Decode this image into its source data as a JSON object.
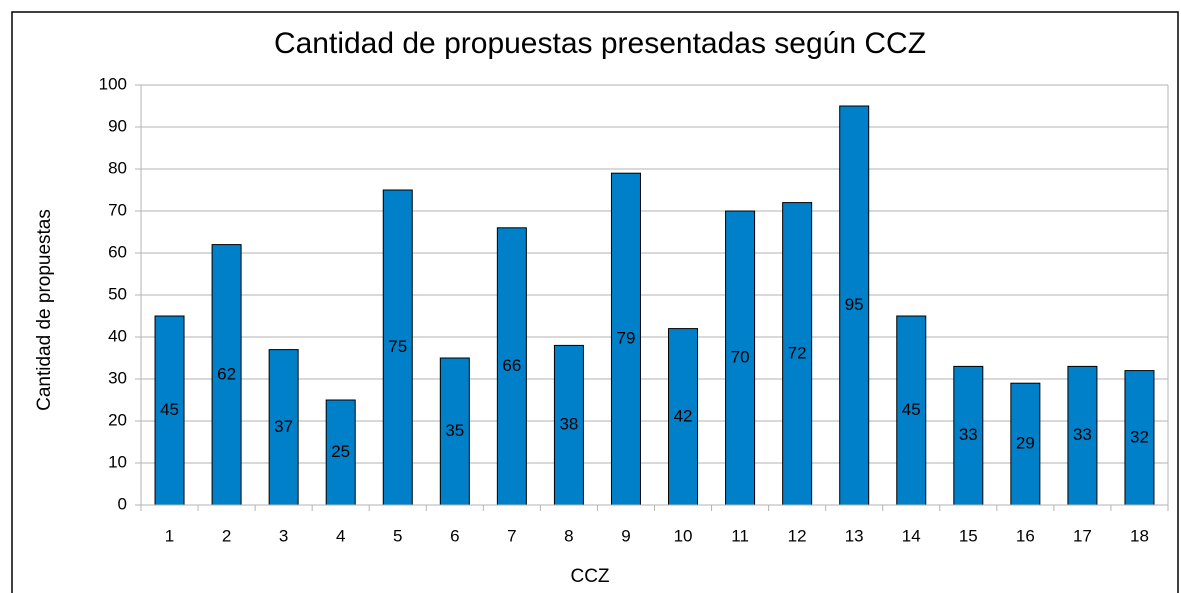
{
  "chart_data": {
    "type": "bar",
    "title": "Cantidad de propuestas presentadas según CCZ",
    "x_label": "CCZ",
    "y_label": "Cantidad de propuestas",
    "categories": [
      "1",
      "2",
      "3",
      "4",
      "5",
      "6",
      "7",
      "8",
      "9",
      "10",
      "11",
      "12",
      "13",
      "14",
      "15",
      "16",
      "17",
      "18"
    ],
    "values": [
      45,
      62,
      37,
      25,
      75,
      35,
      66,
      38,
      79,
      42,
      70,
      72,
      95,
      45,
      33,
      29,
      33,
      32
    ],
    "color": "#0080c8",
    "ylim": [
      0,
      100
    ],
    "yticks": [
      0,
      10,
      20,
      30,
      40,
      50,
      60,
      70,
      80,
      90,
      100
    ],
    "grid": true
  }
}
